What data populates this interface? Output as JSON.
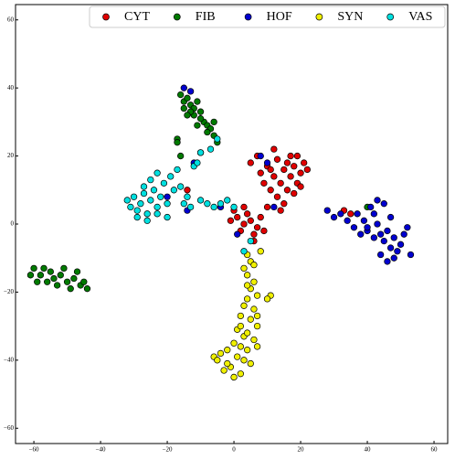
{
  "chart_data": {
    "type": "scatter",
    "xlim": [
      -65.5,
      64.1
    ],
    "ylim": [
      -64.5,
      64.5
    ],
    "xticks": [
      {
        "value": -60,
        "label": "−60"
      },
      {
        "value": -40,
        "label": "−40"
      },
      {
        "value": -20,
        "label": "−20"
      },
      0,
      20,
      40,
      60
    ],
    "yticks": [
      {
        "value": -60,
        "label": "−60"
      },
      {
        "value": -40,
        "label": "−40"
      },
      {
        "value": -20,
        "label": "−20"
      },
      0,
      20,
      40,
      60
    ],
    "legend": "upper right",
    "series": [
      {
        "name": "CYT",
        "color": "#e00000",
        "x": [
          5,
          7,
          8,
          10,
          12,
          13,
          14,
          15,
          16,
          17,
          18,
          19,
          20,
          21,
          22,
          13,
          15,
          11,
          9,
          17,
          12,
          18,
          20,
          14,
          1,
          3,
          5,
          7,
          4,
          2,
          6,
          8,
          0,
          -1,
          3,
          9,
          33,
          35,
          -14,
          6,
          10,
          16,
          19,
          11
        ],
        "values": [
          18,
          20,
          15,
          17,
          14,
          19,
          12,
          16,
          10,
          14,
          17,
          12,
          15,
          18,
          16,
          8,
          6,
          10,
          12,
          20,
          22,
          9,
          11,
          4,
          2,
          0,
          1,
          -1,
          3,
          -2,
          -3,
          2,
          4,
          1,
          5,
          -2,
          4,
          3,
          10,
          -5,
          5,
          18,
          20,
          16
        ]
      },
      {
        "name": "FIB",
        "color": "#007a00",
        "x": [
          -16,
          -15,
          -14,
          -13,
          -12,
          -11,
          -12,
          -10,
          -9,
          -8,
          -7,
          -6,
          -8,
          -10,
          -13,
          -15,
          -14,
          -6,
          -5,
          -11,
          -17,
          -16,
          -17,
          -60,
          -58,
          -57,
          -55,
          -54,
          -52,
          -50,
          -48,
          -46,
          -45,
          -44,
          -56,
          -53,
          -49,
          -51,
          -47,
          -61,
          -59,
          40,
          -10
        ],
        "values": [
          38,
          36,
          37,
          35,
          34,
          36,
          32,
          33,
          30,
          29,
          28,
          30,
          27,
          31,
          33,
          34,
          32,
          26,
          24,
          29,
          25,
          20,
          24,
          -13,
          -15,
          -13,
          -14,
          -16,
          -15,
          -17,
          -16,
          -18,
          -17,
          -19,
          -17,
          -18,
          -19,
          -13,
          -14,
          -15,
          -17,
          5,
          21
        ]
      },
      {
        "name": "HOF",
        "color": "#0000d0",
        "x": [
          28,
          30,
          32,
          34,
          36,
          37,
          39,
          40,
          41,
          42,
          43,
          44,
          45,
          46,
          47,
          48,
          49,
          50,
          51,
          52,
          47,
          45,
          43,
          42,
          38,
          44,
          48,
          46,
          53,
          40,
          -15,
          -13,
          8,
          10,
          -12,
          -20,
          -14,
          1,
          -4,
          12
        ],
        "values": [
          4,
          2,
          3,
          1,
          -1,
          3,
          1,
          -2,
          5,
          3,
          0,
          -3,
          -5,
          -2,
          -7,
          -4,
          -8,
          -6,
          -3,
          -1,
          2,
          6,
          7,
          -4,
          -3,
          -9,
          -10,
          -11,
          -9,
          -1,
          40,
          39,
          20,
          18,
          18,
          8,
          4,
          -3,
          5,
          5
        ]
      },
      {
        "name": "SYN",
        "color": "#f0f000",
        "x": [
          4,
          5,
          3,
          4,
          6,
          5,
          7,
          4,
          3,
          6,
          2,
          5,
          7,
          1,
          3,
          6,
          0,
          2,
          4,
          -2,
          -4,
          -6,
          1,
          3,
          5,
          -1,
          -3,
          2,
          0,
          -2,
          -5,
          4,
          7,
          2,
          11,
          10,
          8,
          6,
          4,
          7
        ],
        "values": [
          -9,
          -11,
          -13,
          -15,
          -17,
          -19,
          -21,
          -22,
          -24,
          -25,
          -27,
          -28,
          -30,
          -31,
          -33,
          -34,
          -35,
          -36,
          -37,
          -37,
          -38,
          -39,
          -39,
          -40,
          -41,
          -42,
          -43,
          -44,
          -45,
          -41,
          -40,
          -32,
          -36,
          -30,
          -21,
          -22,
          -8,
          -12,
          -18,
          -27
        ]
      },
      {
        "name": "VAS",
        "color": "#00e0e0",
        "x": [
          -32,
          -31,
          -30,
          -29,
          -28,
          -27,
          -26,
          -25,
          -24,
          -23,
          -22,
          -21,
          -20,
          -19,
          -18,
          -17,
          -16,
          -15,
          -14,
          -12,
          -11,
          -10,
          -8,
          -6,
          -4,
          -2,
          0,
          -29,
          -26,
          -23,
          -20,
          -10,
          -5,
          5,
          3,
          -13,
          -7,
          -27,
          -25,
          -23
        ],
        "values": [
          7,
          5,
          8,
          4,
          6,
          9,
          3,
          7,
          10,
          5,
          8,
          12,
          6,
          14,
          10,
          16,
          11,
          6,
          8,
          17,
          18,
          7,
          6,
          5,
          6,
          7,
          5,
          2,
          1,
          3,
          2,
          21,
          25,
          -5,
          -8,
          5,
          22,
          11,
          13,
          15
        ]
      }
    ]
  }
}
